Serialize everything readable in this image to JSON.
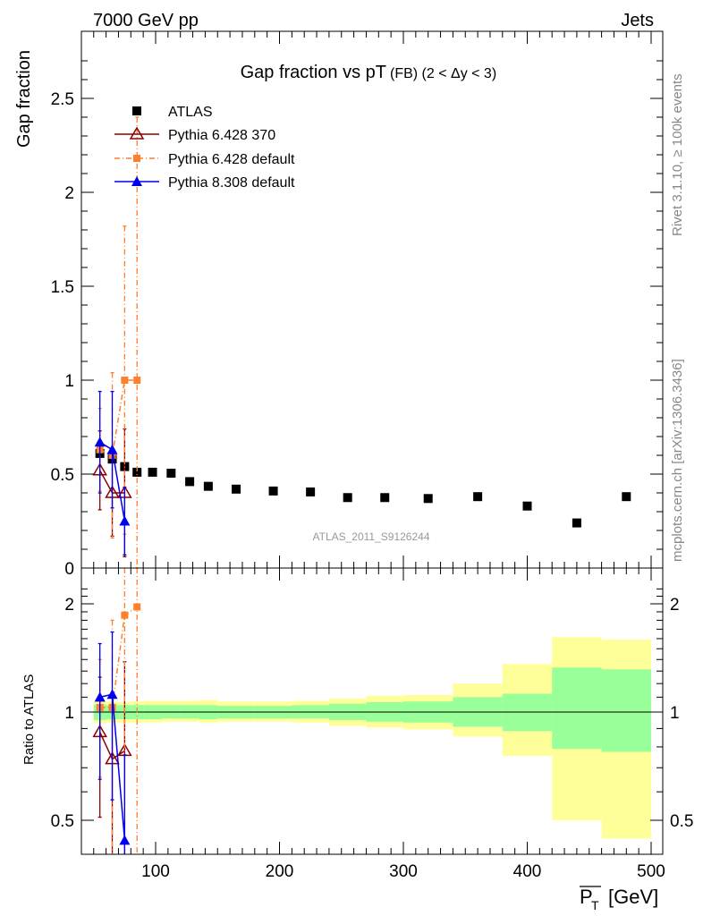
{
  "header": {
    "energy_label": "7000 GeV pp",
    "process_label": "Jets"
  },
  "side_labels": {
    "rivet": "Rivet 3.1.10, ≥ 100k events",
    "mcplots": "mcplots.cern.ch [arXiv:1306.3436]"
  },
  "colors": {
    "atlas": "#000000",
    "pythia6_370": "#8b0000",
    "pythia6_default": "#ff7f2a",
    "pythia8_default": "#0000ee",
    "band_inner": "#99ff99",
    "band_outer": "#ffff99"
  },
  "chart_data": [
    {
      "type": "scatter",
      "title_main": "Gap fraction vs pT",
      "title_sub": "(FB) (2 < Δy < 3)",
      "ylabel": "Gap fraction",
      "watermark": "ATLAS_2011_S9126244",
      "xlim": [
        40,
        505
      ],
      "ylim": [
        0,
        2.85
      ],
      "yticks": [
        "0",
        "0.5",
        "1",
        "1.5",
        "2",
        "2.5"
      ],
      "legend_position": "top-left",
      "series": [
        {
          "name": "ATLAS",
          "x": [
            55,
            65,
            75,
            85,
            97.5,
            112.5,
            127.5,
            142.5,
            165,
            195,
            225,
            255,
            285,
            320,
            360,
            400,
            440,
            480
          ],
          "y": [
            0.61,
            0.58,
            0.54,
            0.51,
            0.51,
            0.505,
            0.46,
            0.435,
            0.42,
            0.41,
            0.405,
            0.375,
            0.375,
            0.37,
            0.38,
            0.33,
            0.24,
            0.38
          ]
        },
        {
          "name": "Pythia 6.428 370",
          "x": [
            55,
            65,
            75
          ],
          "y": [
            0.52,
            0.4,
            0.4
          ],
          "err": [
            0.21,
            0.23,
            0.34
          ]
        },
        {
          "name": "Pythia 6.428 default",
          "x": [
            55,
            65,
            75,
            85
          ],
          "y": [
            0.63,
            0.6,
            1.0,
            1.0
          ],
          "err": [
            0.22,
            0.44,
            0.82,
            1.4
          ]
        },
        {
          "name": "Pythia 8.308 default",
          "x": [
            55,
            65,
            75
          ],
          "y": [
            0.67,
            0.63,
            0.25
          ],
          "err": [
            0.27,
            0.31,
            0.18
          ]
        }
      ]
    },
    {
      "type": "scatter",
      "ylabel": "Ratio to ATLAS",
      "xlabel": "P_T [GeV]",
      "xlim": [
        40,
        505
      ],
      "ylim": [
        0.35,
        2.35
      ],
      "xticks": [
        "100",
        "200",
        "300",
        "400",
        "500"
      ],
      "yticks": [
        "0.5",
        "1",
        "2"
      ],
      "reference_line": 1,
      "uncertainty_bands": {
        "edges": [
          50,
          60,
          70,
          80,
          90,
          105,
          120,
          135,
          150,
          180,
          210,
          240,
          270,
          300,
          340,
          380,
          420,
          460,
          500
        ],
        "inner_lo": [
          0.95,
          0.955,
          0.955,
          0.955,
          0.955,
          0.96,
          0.96,
          0.955,
          0.96,
          0.96,
          0.96,
          0.95,
          0.94,
          0.935,
          0.91,
          0.885,
          0.79,
          0.775
        ],
        "inner_hi": [
          1.05,
          1.045,
          1.045,
          1.045,
          1.045,
          1.045,
          1.045,
          1.045,
          1.04,
          1.04,
          1.045,
          1.055,
          1.065,
          1.07,
          1.1,
          1.125,
          1.33,
          1.315
        ],
        "outer_lo": [
          0.93,
          0.935,
          0.935,
          0.935,
          0.935,
          0.94,
          0.94,
          0.935,
          0.94,
          0.94,
          0.935,
          0.915,
          0.905,
          0.895,
          0.855,
          0.755,
          0.5,
          0.445
        ],
        "outer_hi": [
          1.07,
          1.07,
          1.065,
          1.07,
          1.075,
          1.075,
          1.075,
          1.08,
          1.07,
          1.07,
          1.075,
          1.09,
          1.11,
          1.115,
          1.2,
          1.36,
          1.615,
          1.59
        ]
      },
      "series": [
        {
          "name": "Pythia 6.428 370",
          "x": [
            55,
            65,
            75
          ],
          "y": [
            0.88,
            0.74,
            0.78
          ],
          "err": [
            0.37,
            0.39,
            0.6
          ]
        },
        {
          "name": "Pythia 6.428 default",
          "x": [
            55,
            65,
            75,
            85
          ],
          "y": [
            1.03,
            1.03,
            1.86,
            1.96
          ],
          "err": [
            0.37,
            0.77,
            1.52,
            2.8
          ]
        },
        {
          "name": "Pythia 8.308 default",
          "x": [
            55,
            65,
            75
          ],
          "y": [
            1.1,
            1.12,
            0.44
          ],
          "err": [
            0.45,
            0.55,
            0.32
          ]
        }
      ]
    }
  ]
}
